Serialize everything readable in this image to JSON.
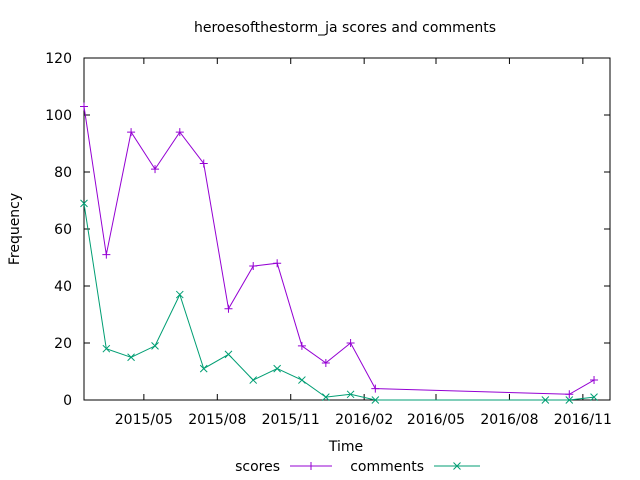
{
  "chart_data": {
    "type": "line",
    "title": "heroesofthestorm_ja scores and comments",
    "xlabel": "Time",
    "ylabel": "Frequency",
    "ylim": [
      0,
      120
    ],
    "yticks": [
      0,
      20,
      40,
      60,
      80,
      100,
      120
    ],
    "xlim": [
      "2015-02-15",
      "2016-12-05"
    ],
    "xticks": [
      {
        "label": "2015/05",
        "date": "2015-05-01"
      },
      {
        "label": "2015/08",
        "date": "2015-08-01"
      },
      {
        "label": "2015/11",
        "date": "2015-11-01"
      },
      {
        "label": "2016/02",
        "date": "2016-02-01"
      },
      {
        "label": "2016/05",
        "date": "2016-05-01"
      },
      {
        "label": "2016/08",
        "date": "2016-08-01"
      },
      {
        "label": "2016/11",
        "date": "2016-11-01"
      }
    ],
    "legend_position": "bottom",
    "series": [
      {
        "name": "scores",
        "color": "#9400d3",
        "marker": "plus",
        "x": [
          "2015-02-15",
          "2015-03-15",
          "2015-04-15",
          "2015-05-15",
          "2015-06-15",
          "2015-07-15",
          "2015-08-15",
          "2015-09-15",
          "2015-10-15",
          "2015-11-15",
          "2015-12-15",
          "2016-01-15",
          "2016-02-15",
          "2016-10-15",
          "2016-11-15"
        ],
        "values": [
          103,
          51,
          94,
          81,
          94,
          83,
          32,
          47,
          48,
          19,
          13,
          20,
          4,
          2,
          7
        ]
      },
      {
        "name": "comments",
        "color": "#009e73",
        "marker": "cross",
        "x": [
          "2015-02-15",
          "2015-03-15",
          "2015-04-15",
          "2015-05-15",
          "2015-06-15",
          "2015-07-15",
          "2015-08-15",
          "2015-09-15",
          "2015-10-15",
          "2015-11-15",
          "2015-12-15",
          "2016-01-15",
          "2016-02-15",
          "2016-09-15",
          "2016-10-15",
          "2016-11-15"
        ],
        "values": [
          69,
          18,
          15,
          19,
          37,
          11,
          16,
          7,
          11,
          7,
          1,
          2,
          0,
          0,
          0,
          1
        ]
      }
    ]
  }
}
